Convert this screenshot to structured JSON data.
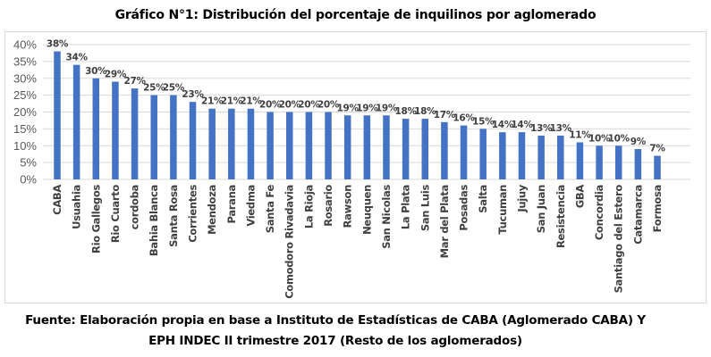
{
  "title": "Gráfico N°1: Distribución del porcentaje de inquilinos por aglomerado",
  "footer": {
    "line1": "Fuente: Elaboración propia en base a Instituto de Estadísticas de CABA (Aglomerado CABA) Y",
    "line2": "EPH INDEC II trimestre 2017 (Resto de los aglomerados)"
  },
  "chart_data": {
    "type": "bar",
    "title": "Gráfico N°1: Distribución del porcentaje de inquilinos por aglomerado",
    "xlabel": "",
    "ylabel": "",
    "ylim": [
      0,
      40
    ],
    "yticks": [
      "0%",
      "5%",
      "10%",
      "15%",
      "20%",
      "25%",
      "30%",
      "35%",
      "40%"
    ],
    "grid": true,
    "bar_color": "#4472c4",
    "categories": [
      "CABA",
      "Usuahia",
      "Rio Gallegos",
      "Rio Cuarto",
      "cordoba",
      "Bahia Blanca",
      "Santa Rosa",
      "Corrientes",
      "Mendoza",
      "Parana",
      "Viedma",
      "Santa Fe",
      "Comodoro Rivadavia",
      "La Rioja",
      "Rosario",
      "Rawson",
      "Neuquen",
      "San Nicolas",
      "La Plata",
      "San Luis",
      "Mar del Plata",
      "Posadas",
      "Salta",
      "Tucuman",
      "Jujuy",
      "San Juan",
      "Resistencia",
      "GBA",
      "Concordia",
      "Santiago del Estero",
      "Catamarca",
      "Formosa"
    ],
    "values": [
      38,
      34,
      30,
      29,
      27,
      25,
      25,
      23,
      21,
      21,
      21,
      20,
      20,
      20,
      20,
      19,
      19,
      19,
      18,
      18,
      17,
      16,
      15,
      14,
      14,
      13,
      13,
      11,
      10,
      10,
      9,
      7
    ],
    "data_labels": [
      "38%",
      "34%",
      "30%",
      "29%",
      "27%",
      "25%",
      "25%",
      "23%",
      "21%",
      "21%",
      "21%",
      "20%",
      "20%",
      "20%",
      "20%",
      "19%",
      "19%",
      "19%",
      "18%",
      "18%",
      "17%",
      "16%",
      "15%",
      "14%",
      "14%",
      "13%",
      "13%",
      "11%",
      "10%",
      "10%",
      "9%",
      "7%"
    ]
  }
}
